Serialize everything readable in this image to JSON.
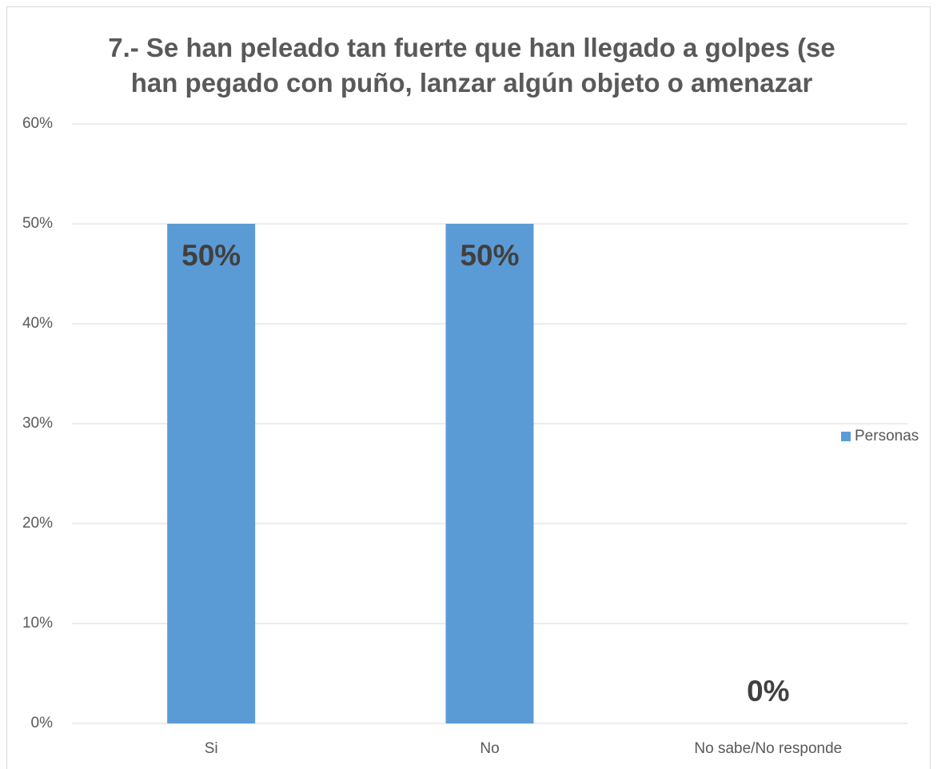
{
  "chart_data": {
    "type": "bar",
    "title": "7.- Se han peleado tan fuerte que han llegado a golpes (se han pegado con puño, lanzar algún objeto o amenazar",
    "categories": [
      "Si",
      "No",
      "No sabe/No responde"
    ],
    "series": [
      {
        "name": "Personas",
        "color": "#5b9bd5",
        "values": [
          50,
          50,
          0
        ],
        "value_labels": [
          "50%",
          "50%",
          "0%"
        ]
      }
    ],
    "ylim": [
      0,
      60
    ],
    "yticks": [
      {
        "value": 0,
        "label": "0%"
      },
      {
        "value": 10,
        "label": "10%"
      },
      {
        "value": 20,
        "label": "20%"
      },
      {
        "value": 30,
        "label": "30%"
      },
      {
        "value": 40,
        "label": "40%"
      },
      {
        "value": 50,
        "label": "50%"
      },
      {
        "value": 60,
        "label": "60%"
      }
    ],
    "grid": true,
    "legend": "right"
  }
}
